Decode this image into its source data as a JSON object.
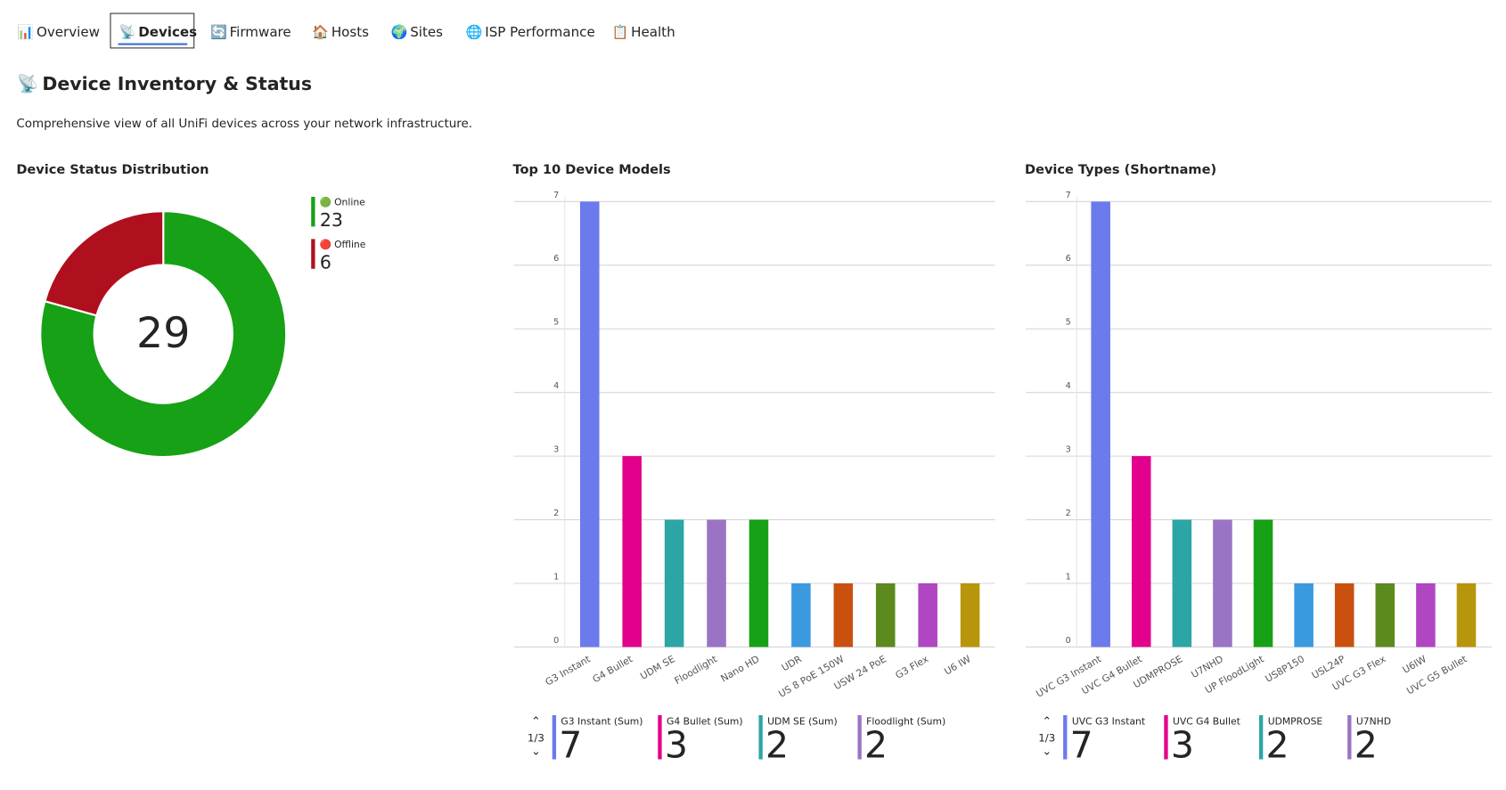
{
  "tabs": [
    "Overview",
    "Devices",
    "Firmware",
    "Hosts",
    "Sites",
    "ISP Performance",
    "Health"
  ],
  "active_tab": 1,
  "header": {
    "title": "Device Inventory & Status",
    "description": "Comprehensive view of all UniFi devices across your network infrastructure."
  },
  "chart_data": [
    {
      "type": "donut",
      "title": "Device Status Distribution",
      "total": 29,
      "categories": [
        "Online",
        "Offline"
      ],
      "values": [
        23,
        6
      ],
      "colors": [
        "#16a116",
        "#b00f1e"
      ]
    },
    {
      "type": "bar",
      "title": "Top 10 Device Models",
      "categories": [
        "G3 Instant",
        "G4 Bullet",
        "UDM SE",
        "Floodlight",
        "Nano HD",
        "UDR",
        "US 8 PoE 150W",
        "USW 24 PoE",
        "G3 Flex",
        "U6 IW"
      ],
      "values": [
        7,
        3,
        2,
        2,
        2,
        1,
        1,
        1,
        1,
        1
      ],
      "colors": [
        "#6b7bec",
        "#e3008c",
        "#2ca5a5",
        "#9b73c4",
        "#16a116",
        "#3b99e0",
        "#ca5010",
        "#5c8a1e",
        "#b146c2",
        "#b8960b"
      ],
      "ylim": [
        0,
        7
      ],
      "yticks": [
        0,
        1,
        2,
        3,
        4,
        5,
        6,
        7
      ],
      "grid": true,
      "legend_labels": [
        "G3 Instant (Sum)",
        "G4 Bullet (Sum)",
        "UDM SE (Sum)",
        "Floodlight (Sum)"
      ],
      "legend_page": "1/3"
    },
    {
      "type": "bar",
      "title": "Device Types (Shortname)",
      "categories": [
        "UVC G3 Instant",
        "UVC G4 Bullet",
        "UDMPROSE",
        "U7NHD",
        "UP FloodLight",
        "US8P150",
        "USL24P",
        "UVC G3 Flex",
        "U6IW",
        "UVC G5 Bullet"
      ],
      "values": [
        7,
        3,
        2,
        2,
        2,
        1,
        1,
        1,
        1,
        1
      ],
      "colors": [
        "#6b7bec",
        "#e3008c",
        "#2ca5a5",
        "#9b73c4",
        "#16a116",
        "#3b99e0",
        "#ca5010",
        "#5c8a1e",
        "#b146c2",
        "#b8960b"
      ],
      "ylim": [
        0,
        7
      ],
      "yticks": [
        0,
        1,
        2,
        3,
        4,
        5,
        6,
        7
      ],
      "grid": true,
      "legend_labels": [
        "UVC G3 Instant",
        "UVC G4 Bullet",
        "UDMPROSE",
        "U7NHD"
      ],
      "legend_page": "1/3"
    }
  ]
}
